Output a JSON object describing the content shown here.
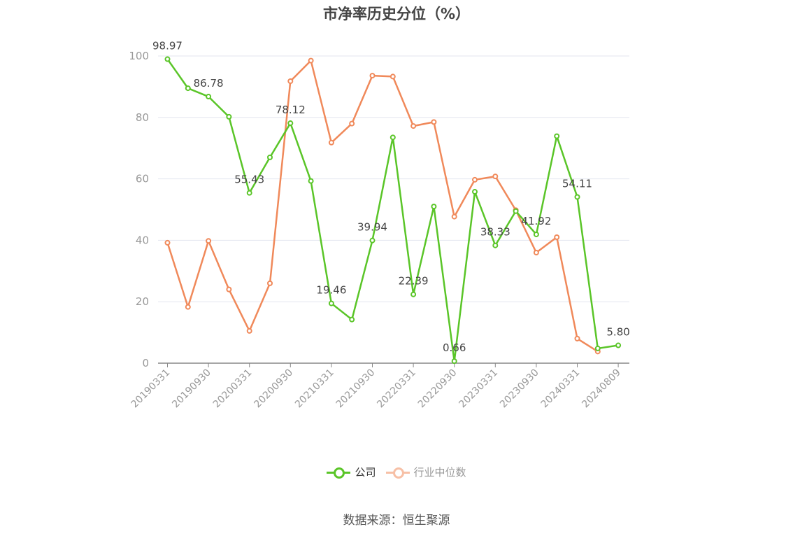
{
  "title": "市净率历史分位（%）",
  "source": "数据来源：恒生聚源",
  "legend": [
    {
      "name": "公司",
      "color": "#5ac528",
      "active": true
    },
    {
      "name": "行业中位数",
      "color": "#f0895a",
      "active": false
    }
  ],
  "chart_data": {
    "type": "line",
    "x": [
      "20190331",
      "20190630",
      "20190930",
      "20191231",
      "20200331",
      "20200630",
      "20200930",
      "20201231",
      "20210331",
      "20210630",
      "20210930",
      "20211231",
      "20220331",
      "20220630",
      "20220930",
      "20221231",
      "20230331",
      "20230630",
      "20230930",
      "20231231",
      "20240331",
      "20240630",
      "20240809"
    ],
    "x_tick_labels": [
      "20190331",
      "20190930",
      "20200331",
      "20200930",
      "20210331",
      "20210930",
      "20220331",
      "20220930",
      "20230331",
      "20230930",
      "20240331",
      "20240809"
    ],
    "ylim": [
      0,
      100
    ],
    "y_ticks": [
      0,
      20,
      40,
      60,
      80,
      100
    ],
    "grid": true,
    "legend_position": "bottom-center",
    "series": [
      {
        "name": "公司",
        "color": "#5ac528",
        "values": [
          98.97,
          89.5,
          86.78,
          80.2,
          55.43,
          67.0,
          78.12,
          59.3,
          19.46,
          14.2,
          39.94,
          73.5,
          22.39,
          51.0,
          0.66,
          55.8,
          38.33,
          49.5,
          41.92,
          73.9,
          54.11,
          4.8,
          5.8
        ],
        "labels": {
          "0": "98.97",
          "2": "86.78",
          "4": "55.43",
          "6": "78.12",
          "8": "19.46",
          "10": "39.94",
          "12": "22.39",
          "14": "0.66",
          "16": "38.33",
          "18": "41.92",
          "20": "54.11",
          "22": "5.80"
        }
      },
      {
        "name": "行业中位数",
        "color": "#f0895a",
        "values": [
          39.2,
          18.3,
          39.8,
          24.0,
          10.5,
          26.0,
          91.8,
          98.5,
          71.8,
          78.0,
          93.6,
          93.3,
          77.2,
          78.5,
          47.7,
          59.7,
          60.8,
          49.8,
          36.0,
          41.0,
          8.0,
          3.8,
          null
        ]
      }
    ]
  }
}
